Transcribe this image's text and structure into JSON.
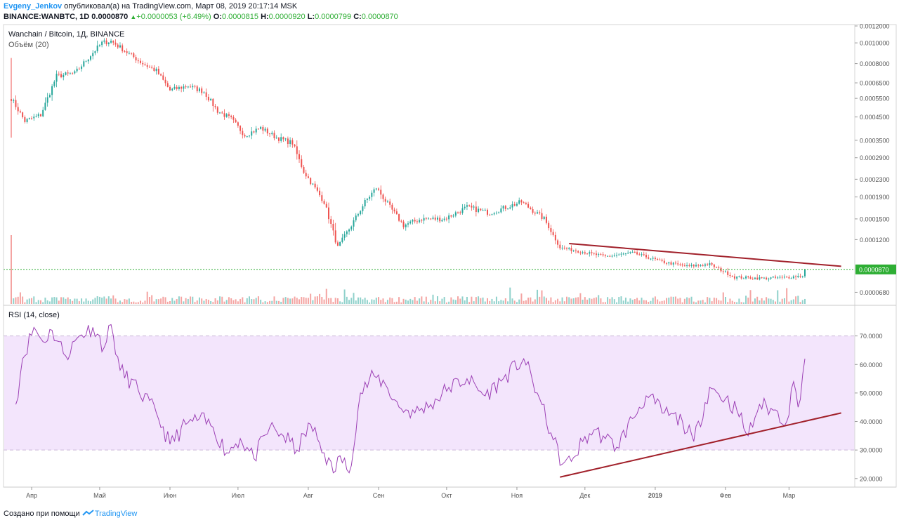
{
  "header": {
    "author": "Evgeny_Jenkov",
    "published_text": " опубликовал(а) на TradingView.com, Март 08, 2019 20:17:14 MSK",
    "symbol": "BINANCE:WANBTC, 1D",
    "last": "0.0000870",
    "change": "+0.0000053 (+6.49%)",
    "o_label": "O:",
    "o": "0.0000815",
    "h_label": "H:",
    "h": "0.0000920",
    "l_label": "L:",
    "l": "0.0000799",
    "c_label": "C:",
    "c": "0.0000870"
  },
  "main_pane": {
    "legend_title": "Wanchain / Bitcoin, 1Д, BINANCE",
    "legend_volume": "Объём (20)",
    "last_price_label": "0.0000870",
    "colors": {
      "up": "#26a69a",
      "down": "#ef5350",
      "vol_up": "#8fd1cb",
      "vol_down": "#f4a4a2",
      "trendline": "#a1202a",
      "last_line": "#2eae34"
    }
  },
  "rsi_pane": {
    "legend": "RSI (14, close)",
    "colors": {
      "line": "#9c40b5",
      "band": "#f3e5fc",
      "trendline": "#a1202a"
    }
  },
  "chart_data": [
    {
      "type": "candlestick",
      "title": "Wanchain / Bitcoin, 1Д, BINANCE",
      "y_scale": "log",
      "ylim": [
        6e-05,
        0.0012
      ],
      "y_ticks": [
        "0.0012000",
        "0.0010000",
        "0.0008000",
        "0.0006500",
        "0.0005500",
        "0.0004500",
        "0.0003500",
        "0.0002900",
        "0.0002300",
        "0.0001900",
        "0.0001500",
        "0.0001200",
        "0.0000870",
        "0.0000680"
      ],
      "x_ticks": [
        "Апр",
        "Май",
        "Июн",
        "Июл",
        "Авг",
        "Сен",
        "Окт",
        "Ноя",
        "Дек",
        "2019",
        "Фев",
        "Мар"
      ],
      "x_range": [
        "2018-03-23",
        "2019-03-08"
      ],
      "price_path": [
        [
          "2018-03-23",
          0.00055
        ],
        [
          "2018-03-29",
          0.00043
        ],
        [
          "2018-04-05",
          0.00046
        ],
        [
          "2018-04-12",
          0.0007
        ],
        [
          "2018-04-20",
          0.00072
        ],
        [
          "2018-04-28",
          0.0009
        ],
        [
          "2018-05-02",
          0.001
        ],
        [
          "2018-05-06",
          0.00102
        ],
        [
          "2018-05-12",
          0.00092
        ],
        [
          "2018-05-20",
          0.0008
        ],
        [
          "2018-05-26",
          0.00074
        ],
        [
          "2018-06-01",
          0.0006
        ],
        [
          "2018-06-09",
          0.00063
        ],
        [
          "2018-06-16",
          0.00059
        ],
        [
          "2018-06-22",
          0.00048
        ],
        [
          "2018-06-28",
          0.00044
        ],
        [
          "2018-07-04",
          0.00037
        ],
        [
          "2018-07-11",
          0.0004
        ],
        [
          "2018-07-18",
          0.00036
        ],
        [
          "2018-07-25",
          0.00034
        ],
        [
          "2018-07-30",
          0.00025
        ],
        [
          "2018-08-08",
          0.00018
        ],
        [
          "2018-08-14",
          0.00011
        ],
        [
          "2018-08-20",
          0.00014
        ],
        [
          "2018-08-26",
          0.00018
        ],
        [
          "2018-08-31",
          0.00021
        ],
        [
          "2018-09-06",
          0.00017
        ],
        [
          "2018-09-12",
          0.00014
        ],
        [
          "2018-09-20",
          0.00015
        ],
        [
          "2018-09-30",
          0.00015
        ],
        [
          "2018-10-10",
          0.00017
        ],
        [
          "2018-10-20",
          0.00016
        ],
        [
          "2018-11-03",
          0.00018
        ],
        [
          "2018-11-13",
          0.00015
        ],
        [
          "2018-11-20",
          0.00011
        ],
        [
          "2018-11-30",
          0.000105
        ],
        [
          "2018-12-10",
          0.0001
        ],
        [
          "2018-12-22",
          0.000104
        ],
        [
          "2019-01-05",
          9.4e-05
        ],
        [
          "2019-01-15",
          9e-05
        ],
        [
          "2019-01-25",
          9.2e-05
        ],
        [
          "2019-02-05",
          8e-05
        ],
        [
          "2019-02-18",
          7.9e-05
        ],
        [
          "2019-03-01",
          8e-05
        ],
        [
          "2019-03-07",
          8.15e-05
        ],
        [
          "2019-03-08",
          8.7e-05
        ]
      ],
      "volume_spike_date": "2018-03-23",
      "trendline": {
        "from": [
          "2018-11-24",
          0.000115
        ],
        "to": [
          "2019-03-24",
          9e-05
        ]
      },
      "last_price": 8.7e-05
    },
    {
      "type": "line",
      "title": "RSI (14, close)",
      "ylim": [
        17,
        80
      ],
      "y_ticks": [
        "70.0000",
        "60.0000",
        "50.0000",
        "40.0000",
        "30.0000",
        "20.0000"
      ],
      "bands": [
        30,
        70
      ],
      "x_range": [
        "2018-03-23",
        "2019-03-08"
      ],
      "points": [
        [
          "2018-03-25",
          46
        ],
        [
          "2018-03-28",
          62
        ],
        [
          "2018-04-02",
          73
        ],
        [
          "2018-04-06",
          68
        ],
        [
          "2018-04-10",
          72
        ],
        [
          "2018-04-16",
          63
        ],
        [
          "2018-04-22",
          70
        ],
        [
          "2018-04-28",
          73
        ],
        [
          "2018-05-03",
          66
        ],
        [
          "2018-05-06",
          74
        ],
        [
          "2018-05-10",
          58
        ],
        [
          "2018-05-18",
          51
        ],
        [
          "2018-05-26",
          43
        ],
        [
          "2018-06-01",
          32
        ],
        [
          "2018-06-08",
          39
        ],
        [
          "2018-06-14",
          41
        ],
        [
          "2018-06-20",
          38
        ],
        [
          "2018-06-26",
          29
        ],
        [
          "2018-07-02",
          34
        ],
        [
          "2018-07-08",
          27
        ],
        [
          "2018-07-15",
          38
        ],
        [
          "2018-07-21",
          35
        ],
        [
          "2018-07-27",
          30
        ],
        [
          "2018-08-02",
          39
        ],
        [
          "2018-08-08",
          29
        ],
        [
          "2018-08-12",
          22
        ],
        [
          "2018-08-15",
          28
        ],
        [
          "2018-08-19",
          22
        ],
        [
          "2018-08-24",
          50
        ],
        [
          "2018-08-30",
          56
        ],
        [
          "2018-09-04",
          53
        ],
        [
          "2018-09-10",
          45
        ],
        [
          "2018-09-17",
          43
        ],
        [
          "2018-09-24",
          46
        ],
        [
          "2018-10-02",
          52
        ],
        [
          "2018-10-10",
          55
        ],
        [
          "2018-10-18",
          49
        ],
        [
          "2018-10-26",
          55
        ],
        [
          "2018-11-04",
          62
        ],
        [
          "2018-11-10",
          50
        ],
        [
          "2018-11-16",
          36
        ],
        [
          "2018-11-21",
          25
        ],
        [
          "2018-11-25",
          26
        ],
        [
          "2018-11-30",
          33
        ],
        [
          "2018-12-05",
          37
        ],
        [
          "2018-12-10",
          34
        ],
        [
          "2018-12-15",
          31
        ],
        [
          "2018-12-22",
          41
        ],
        [
          "2018-12-28",
          49
        ],
        [
          "2019-01-05",
          43
        ],
        [
          "2019-01-13",
          40
        ],
        [
          "2019-01-18",
          33
        ],
        [
          "2019-01-25",
          52
        ],
        [
          "2019-02-01",
          48
        ],
        [
          "2019-02-06",
          44
        ],
        [
          "2019-02-11",
          35
        ],
        [
          "2019-02-16",
          46
        ],
        [
          "2019-02-22",
          44
        ],
        [
          "2019-02-28",
          40
        ],
        [
          "2019-03-03",
          54
        ],
        [
          "2019-03-05",
          45
        ],
        [
          "2019-03-08",
          62
        ]
      ],
      "trendline": {
        "from": [
          "2018-11-20",
          20.5
        ],
        "to": [
          "2019-03-24",
          43
        ]
      }
    }
  ]
}
